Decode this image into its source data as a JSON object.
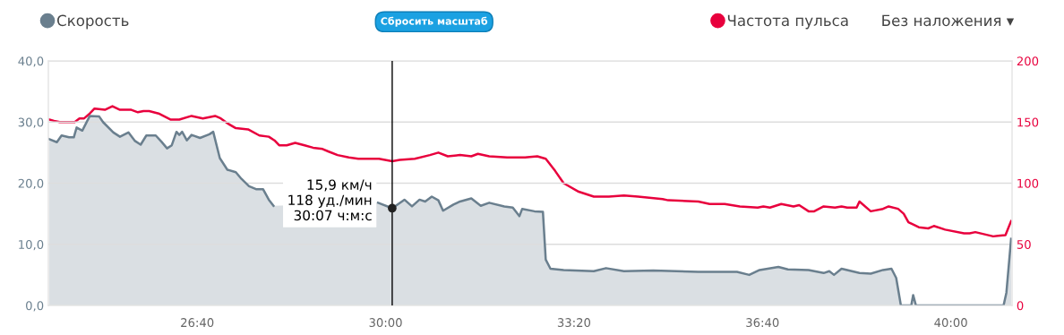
{
  "chart_data": {
    "type": "area",
    "xlim": [
      1442,
      2465
    ],
    "xticks": [
      {
        "value": 1600,
        "label": "26:40"
      },
      {
        "value": 1800,
        "label": "30:00"
      },
      {
        "value": 2000,
        "label": "33:20"
      },
      {
        "value": 2200,
        "label": "36:40"
      },
      {
        "value": 2400,
        "label": "40:00"
      }
    ],
    "ylim": [
      0,
      40
    ],
    "yticks": [
      {
        "value": 0,
        "label": "0,0"
      },
      {
        "value": 10,
        "label": "10,0"
      },
      {
        "value": 20,
        "label": "20,0"
      },
      {
        "value": 30,
        "label": "30,0"
      },
      {
        "value": 40,
        "label": "40,0"
      }
    ],
    "y2lim": [
      0,
      200
    ],
    "y2ticks": [
      0,
      50,
      100,
      150,
      200
    ],
    "grid": "y",
    "legend": "top",
    "series": [
      {
        "name": "Скорость",
        "color": "#6a7f8e",
        "x": [
          1443,
          1451,
          1456,
          1464,
          1469,
          1472,
          1478,
          1486,
          1496,
          1500,
          1511,
          1518,
          1527,
          1534,
          1540,
          1546,
          1556,
          1562,
          1568,
          1573,
          1578,
          1581,
          1584,
          1589,
          1594,
          1603,
          1613,
          1617,
          1624,
          1632,
          1641,
          1647,
          1655,
          1663,
          1670,
          1676,
          1681,
          1714,
          1742,
          1771,
          1792,
          1807,
          1820,
          1828,
          1836,
          1842,
          1849,
          1856,
          1861,
          1872,
          1879,
          1891,
          1901,
          1910,
          1926,
          1935,
          1942,
          1945,
          1958,
          1967,
          1970,
          1975,
          1989,
          2021,
          2034,
          2053,
          2084,
          2132,
          2144,
          2173,
          2186,
          2197,
          2217,
          2227,
          2249,
          2265,
          2271,
          2276,
          2284,
          2303,
          2315,
          2328,
          2337,
          2342,
          2347,
          2358,
          2360,
          2363,
          2456,
          2459,
          2464
        ],
        "values": [
          27.2,
          26.7,
          27.8,
          27.5,
          27.5,
          29.1,
          28.6,
          31.0,
          30.9,
          30.0,
          28.3,
          27.6,
          28.3,
          26.9,
          26.3,
          27.8,
          27.8,
          26.8,
          25.7,
          26.2,
          28.4,
          27.9,
          28.4,
          27.0,
          27.9,
          27.4,
          28.0,
          28.4,
          24.1,
          22.2,
          21.8,
          20.7,
          19.5,
          19.0,
          19.0,
          17.3,
          16.3,
          null,
          null,
          null,
          16.8,
          15.9,
          17.3,
          16.2,
          17.3,
          17.0,
          17.8,
          17.2,
          15.5,
          16.5,
          17.0,
          17.5,
          16.3,
          16.8,
          16.2,
          16.0,
          14.6,
          15.8,
          15.4,
          15.3,
          7.5,
          6.0,
          5.8,
          5.6,
          6.1,
          5.6,
          5.7,
          5.5,
          5.5,
          5.5,
          5.0,
          5.8,
          6.3,
          5.9,
          5.8,
          5.3,
          5.6,
          5.0,
          6.0,
          5.3,
          5.2,
          5.8,
          6.0,
          4.5,
          0,
          0,
          1.7,
          0,
          0,
          2.1,
          10.9
        ]
      },
      {
        "name": "Частота пульса",
        "type": "line",
        "axis": "y2",
        "color": "#e8003d",
        "x": [
          1443,
          1448,
          1454,
          1470,
          1475,
          1480,
          1486,
          1491,
          1502,
          1510,
          1518,
          1530,
          1537,
          1543,
          1549,
          1559,
          1572,
          1581,
          1594,
          1606,
          1619,
          1625,
          1632,
          1641,
          1654,
          1666,
          1676,
          1682,
          1687,
          1695,
          1704,
          1714,
          1723,
          1733,
          1739,
          1749,
          1761,
          1771,
          1793,
          1807,
          1815,
          1831,
          1847,
          1856,
          1866,
          1879,
          1891,
          1898,
          1910,
          1929,
          1948,
          1961,
          1970,
          1980,
          1989,
          2005,
          2021,
          2037,
          2053,
          2068,
          2094,
          2100,
          2132,
          2144,
          2160,
          2176,
          2195,
          2201,
          2208,
          2220,
          2233,
          2239,
          2249,
          2255,
          2265,
          2277,
          2284,
          2290,
          2300,
          2303,
          2315,
          2328,
          2334,
          2344,
          2350,
          2355,
          2366,
          2376,
          2382,
          2394,
          2414,
          2420,
          2426,
          2445,
          2450,
          2458,
          2464
        ],
        "values": [
          152,
          151,
          150,
          150,
          153,
          153,
          157,
          161,
          160,
          163,
          160,
          160,
          158,
          159,
          159,
          157,
          152,
          152,
          155,
          153,
          155,
          153,
          149,
          145,
          144,
          139,
          138,
          135,
          131,
          131,
          133,
          131,
          129,
          128,
          126,
          123,
          121,
          120,
          120,
          118,
          119,
          120,
          123,
          125,
          122,
          123,
          122,
          124,
          122,
          121,
          121,
          122,
          120,
          110,
          100,
          93,
          89,
          89,
          90,
          89,
          87,
          86,
          85,
          83,
          83,
          81,
          80,
          81,
          80,
          83,
          81,
          82,
          77,
          77,
          81,
          80,
          81,
          80,
          80,
          85,
          77,
          79,
          81,
          79,
          75,
          68,
          64,
          63,
          65,
          62,
          59,
          59,
          60,
          56.5,
          57,
          57.5,
          69
        ]
      }
    ],
    "ref_lines": [
      {
        "axis": "x",
        "value": 1807,
        "color": "#000000"
      }
    ],
    "annotations": [
      {
        "text": "15,9 км/ч\n118 уд./мин\n30:07 ч:м:с",
        "x": 1807,
        "y": 15.9
      },
      "Сбросить масштаб",
      "Без наложения ▾"
    ]
  }
}
